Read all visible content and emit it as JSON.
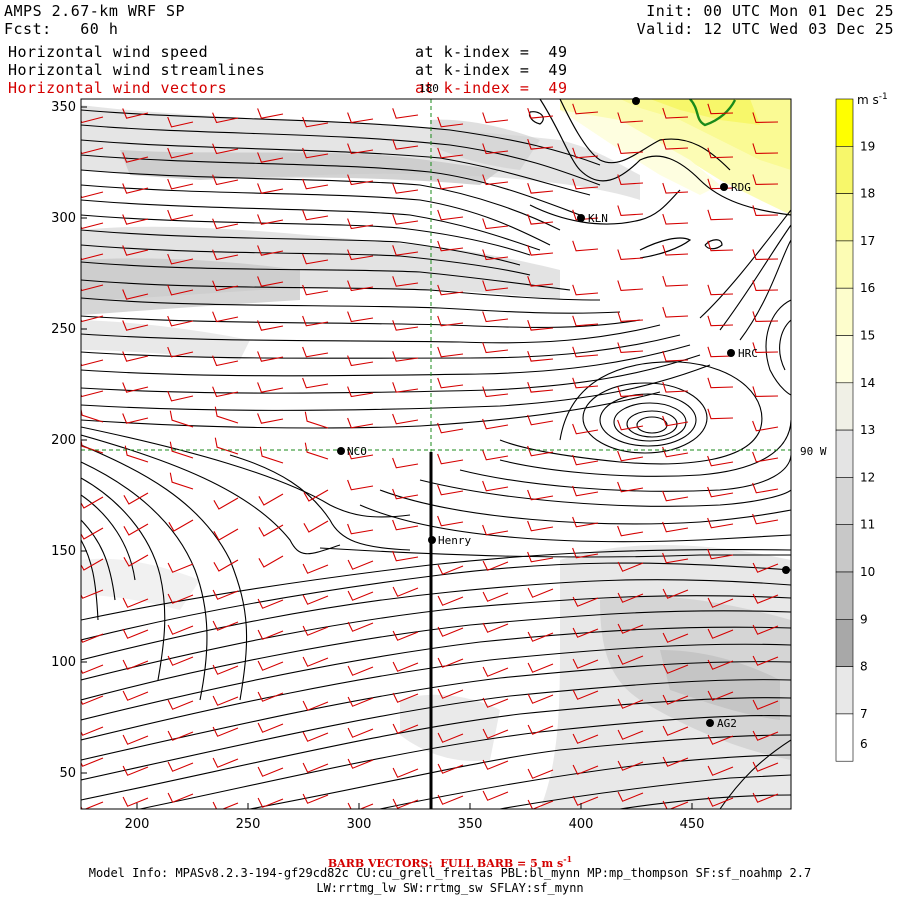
{
  "header": {
    "model": "AMPS 2.67-km WRF SP",
    "forecast": "Fcst:   60 h",
    "init": "Init: 00 UTC Mon 01 Dec 25",
    "valid": "Valid: 12 UTC Wed 03 Dec 25",
    "fields": [
      {
        "name": "Horizontal wind speed",
        "level": "at k-index =  49",
        "color": "#000000"
      },
      {
        "name": "Horizontal wind streamlines",
        "level": "at k-index =  49",
        "color": "#000000"
      },
      {
        "name": "Horizontal wind vectors",
        "level": "at k-index =  49",
        "color": "#d40000"
      }
    ]
  },
  "map": {
    "x_ticks": [
      "200",
      "250",
      "300",
      "350",
      "400",
      "450"
    ],
    "y_ticks": [
      "350",
      "300",
      "250",
      "200",
      "150",
      "100",
      "50"
    ],
    "lon_label": "180",
    "lat_label": "90 W",
    "stations": [
      "NCO",
      "Henry",
      "KLN",
      "RDG",
      "HRC",
      "AG2"
    ],
    "barb_color": "#d40000",
    "streamline_color": "#000000",
    "coast_color": "#1a8a1a"
  },
  "colorbar": {
    "units": "m s",
    "units_exp": "-1",
    "labels": [
      "19",
      "18",
      "17",
      "16",
      "15",
      "14",
      "13",
      "12",
      "11",
      "10",
      "9",
      "8",
      "7",
      "6"
    ],
    "colors": [
      "#ffff00",
      "#f7f76a",
      "#fafa94",
      "#fcfcb4",
      "#fdfdcc",
      "#fefee0",
      "#f0f0e6",
      "#e4e4e4",
      "#d6d6d6",
      "#c8c8c8",
      "#b8b8b8",
      "#a8a8a8",
      "#e8e8e8",
      "#ffffff"
    ]
  },
  "footer": {
    "barb_note": "BARB VECTORS:  FULL BARB = 5 m s",
    "barb_exp": "-1",
    "model_info": "Model Info: MPASv8.2.3-194-gf29cd82c CU:cu_grell_freitas PBL:bl_mynn MP:mp_thompson SF:sf_noahmp 2.7",
    "model_info2": "LW:rrtmg_lw SW:rrtmg_sw SFLAY:sf_mynn"
  }
}
